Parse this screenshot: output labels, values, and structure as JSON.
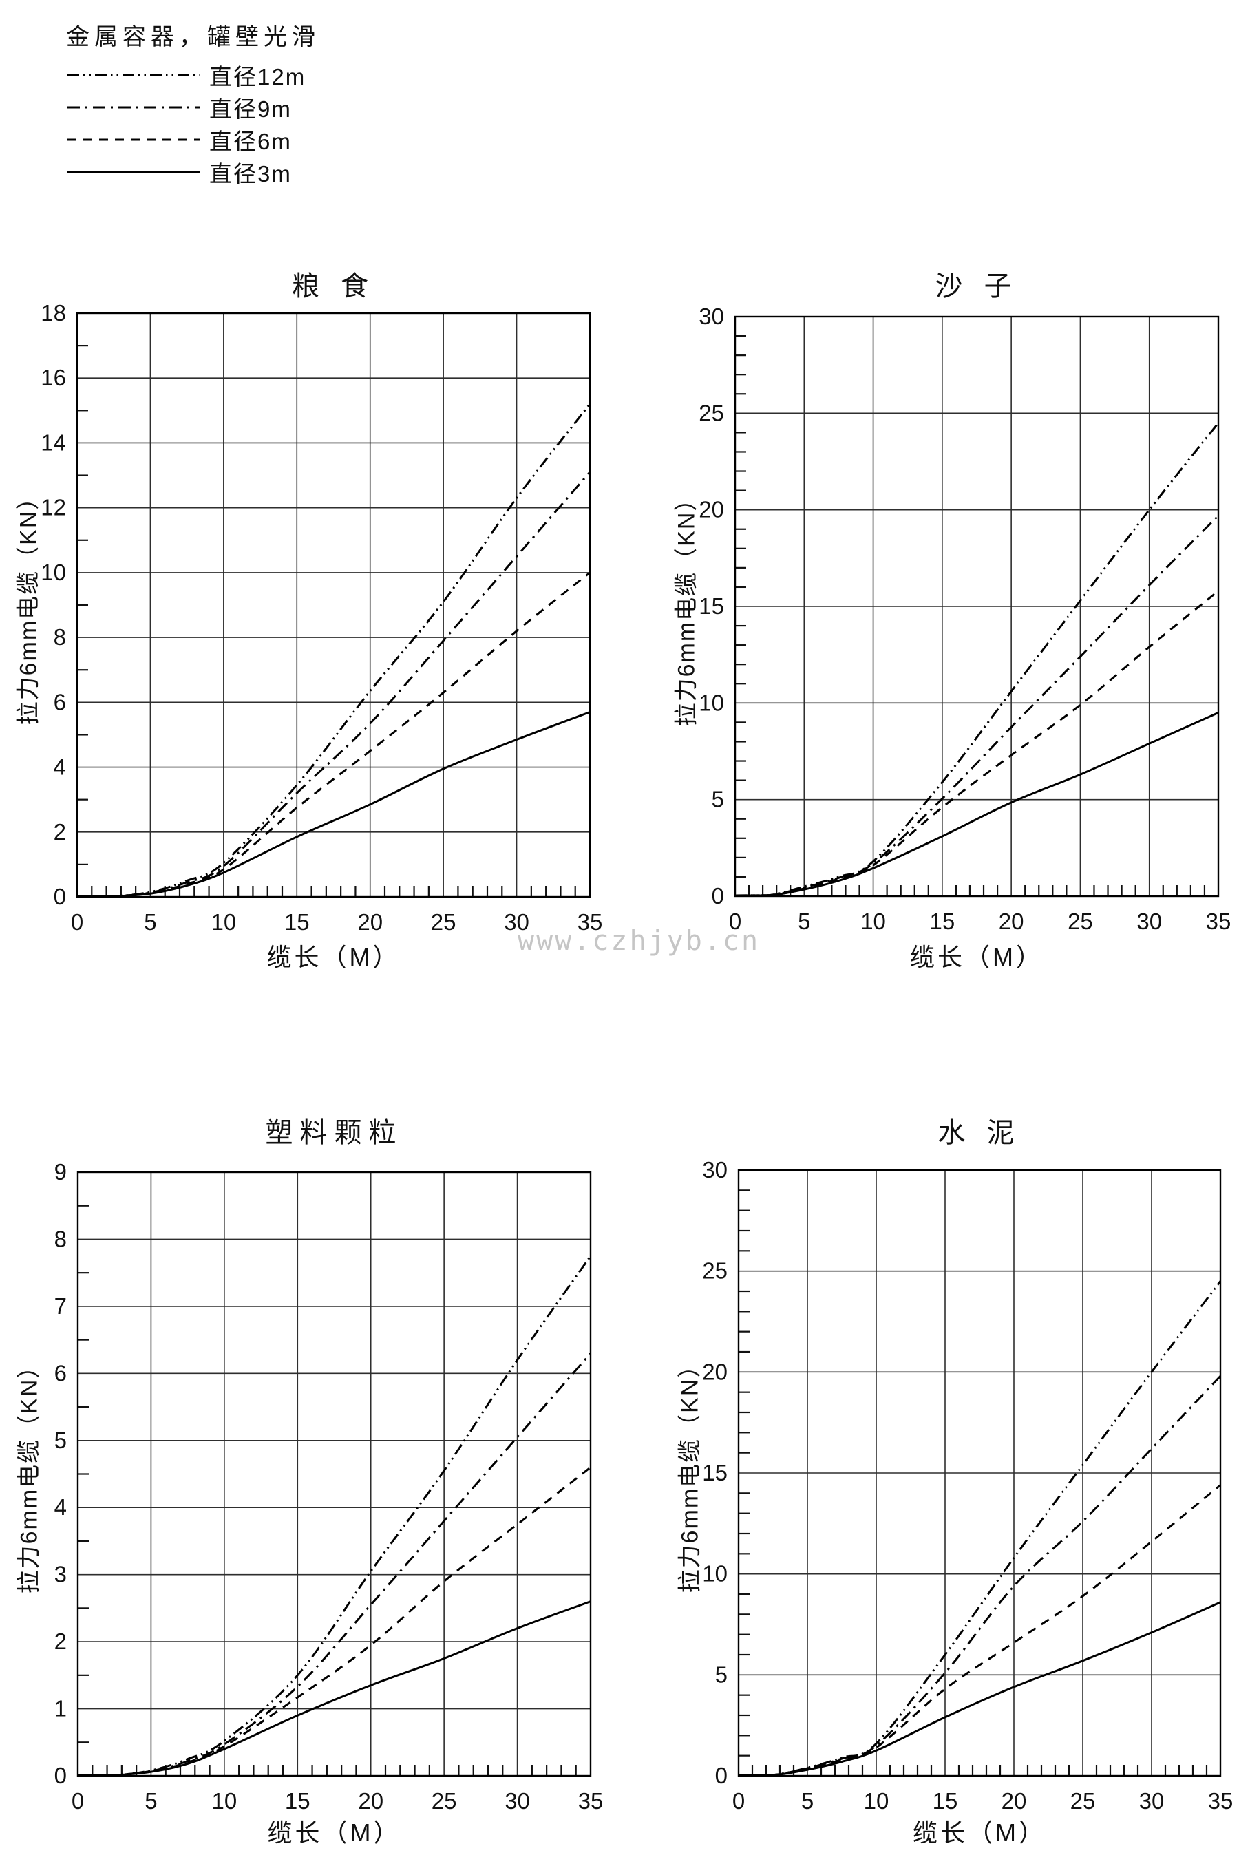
{
  "page": {
    "watermark": "www.czhjyb.cn",
    "background": "#ffffff",
    "ink_color": "#000000",
    "grid_color": "#2e2e2e",
    "watermark_color": "#c5c5c5"
  },
  "legend": {
    "title": "金属容器，罐壁光滑",
    "position": "top-left",
    "items": [
      {
        "label": "直径12m",
        "style": "dashdotdot"
      },
      {
        "label": "直径9m",
        "style": "dashdot"
      },
      {
        "label": "直径6m",
        "style": "dashed"
      },
      {
        "label": "直径3m",
        "style": "solid"
      }
    ]
  },
  "chart_data": [
    {
      "type": "line",
      "title": "粮 食",
      "xlabel": "缆长（M）",
      "ylabel": "拉力6mm电缆（KN）",
      "xlim": [
        0,
        35
      ],
      "ylim": [
        0,
        18
      ],
      "xticks": [
        0,
        5,
        10,
        15,
        20,
        25,
        30,
        35
      ],
      "yticks": [
        0,
        2,
        4,
        6,
        8,
        10,
        12,
        14,
        16,
        18
      ],
      "xminor": 1,
      "yminor": 1,
      "grid": true,
      "x": [
        0,
        2.5,
        5,
        7.5,
        10,
        15,
        20,
        25,
        30,
        35
      ],
      "series": [
        {
          "name": "直径12m",
          "style": "dashdotdot",
          "values": [
            0,
            0.02,
            0.15,
            0.5,
            1.05,
            3.45,
            6.35,
            9.1,
            12.3,
            15.2
          ]
        },
        {
          "name": "直径9m",
          "style": "dashdot",
          "values": [
            0,
            0.02,
            0.13,
            0.45,
            0.95,
            3.2,
            5.35,
            7.9,
            10.5,
            13.1
          ]
        },
        {
          "name": "直径6m",
          "style": "dashed",
          "values": [
            0,
            0.02,
            0.12,
            0.4,
            0.85,
            2.75,
            4.5,
            6.3,
            8.2,
            10.0
          ]
        },
        {
          "name": "直径3m",
          "style": "solid",
          "values": [
            0,
            0.01,
            0.1,
            0.35,
            0.75,
            1.85,
            2.85,
            3.95,
            4.85,
            5.7
          ]
        }
      ]
    },
    {
      "type": "line",
      "title": "沙 子",
      "xlabel": "缆长（M）",
      "ylabel": "拉力6mm电缆（KN）",
      "xlim": [
        0,
        35
      ],
      "ylim": [
        0,
        30
      ],
      "xticks": [
        0,
        5,
        10,
        15,
        20,
        25,
        30,
        35
      ],
      "yticks": [
        0,
        5,
        10,
        15,
        20,
        25,
        30
      ],
      "xminor": 1,
      "yminor": 1,
      "grid": true,
      "x": [
        0,
        2.5,
        5,
        7.5,
        10,
        15,
        20,
        25,
        30,
        35
      ],
      "series": [
        {
          "name": "直径12m",
          "style": "dashdotdot",
          "values": [
            0,
            0.05,
            0.5,
            1.0,
            1.8,
            5.9,
            10.6,
            15.3,
            20.0,
            24.5
          ]
        },
        {
          "name": "直径9m",
          "style": "dashdot",
          "values": [
            0,
            0.05,
            0.45,
            0.95,
            1.7,
            5.05,
            8.75,
            12.4,
            16.1,
            19.7
          ]
        },
        {
          "name": "直径6m",
          "style": "dashed",
          "values": [
            0,
            0.05,
            0.4,
            0.9,
            1.6,
            4.6,
            7.3,
            9.9,
            12.9,
            15.8
          ]
        },
        {
          "name": "直径3m",
          "style": "solid",
          "values": [
            0,
            0.04,
            0.35,
            0.8,
            1.45,
            3.1,
            4.85,
            6.3,
            7.9,
            9.5
          ]
        }
      ]
    },
    {
      "type": "line",
      "title": "塑料颗粒",
      "xlabel": "缆长（M）",
      "ylabel": "拉力6mm电缆（KN）",
      "xlim": [
        0,
        35
      ],
      "ylim": [
        0,
        9
      ],
      "xticks": [
        0,
        5,
        10,
        15,
        20,
        25,
        30,
        35
      ],
      "yticks": [
        0,
        1,
        2,
        3,
        4,
        5,
        6,
        7,
        8,
        9
      ],
      "xminor": 1,
      "yminor": 0.5,
      "grid": true,
      "x": [
        0,
        2.5,
        5,
        7.5,
        10,
        15,
        20,
        25,
        30,
        35
      ],
      "series": [
        {
          "name": "直径12m",
          "style": "dashdotdot",
          "values": [
            0,
            0.01,
            0.08,
            0.25,
            0.52,
            1.5,
            3.05,
            4.55,
            6.2,
            7.75
          ]
        },
        {
          "name": "直径9m",
          "style": "dashdot",
          "values": [
            0,
            0.01,
            0.07,
            0.22,
            0.47,
            1.33,
            2.55,
            3.8,
            5.05,
            6.3
          ]
        },
        {
          "name": "直径6m",
          "style": "dashed",
          "values": [
            0,
            0.01,
            0.07,
            0.2,
            0.44,
            1.17,
            1.95,
            2.9,
            3.75,
            4.6
          ]
        },
        {
          "name": "直径3m",
          "style": "solid",
          "values": [
            0,
            0.01,
            0.06,
            0.18,
            0.4,
            0.9,
            1.35,
            1.75,
            2.2,
            2.6
          ]
        }
      ]
    },
    {
      "type": "line",
      "title": "水 泥",
      "xlabel": "缆长（M）",
      "ylabel": "拉力6mm电缆（KN）",
      "xlim": [
        0,
        35
      ],
      "ylim": [
        0,
        30
      ],
      "xticks": [
        0,
        5,
        10,
        15,
        20,
        25,
        30,
        35
      ],
      "yticks": [
        0,
        5,
        10,
        15,
        20,
        25,
        30
      ],
      "xminor": 1,
      "yminor": 1,
      "grid": true,
      "x": [
        0,
        2.5,
        5,
        7.5,
        10,
        15,
        20,
        25,
        30,
        35
      ],
      "series": [
        {
          "name": "直径12m",
          "style": "dashdotdot",
          "values": [
            0,
            0.04,
            0.4,
            0.9,
            1.6,
            6.0,
            10.8,
            15.4,
            20.0,
            24.5
          ]
        },
        {
          "name": "直径9m",
          "style": "dashdot",
          "values": [
            0,
            0.04,
            0.38,
            0.85,
            1.5,
            5.1,
            9.4,
            12.6,
            16.2,
            19.8
          ]
        },
        {
          "name": "直径6m",
          "style": "dashed",
          "values": [
            0,
            0.04,
            0.35,
            0.8,
            1.4,
            4.3,
            6.6,
            8.9,
            11.6,
            14.4
          ]
        },
        {
          "name": "直径3m",
          "style": "solid",
          "values": [
            0,
            0.03,
            0.3,
            0.7,
            1.25,
            2.9,
            4.4,
            5.7,
            7.1,
            8.6
          ]
        }
      ]
    }
  ]
}
